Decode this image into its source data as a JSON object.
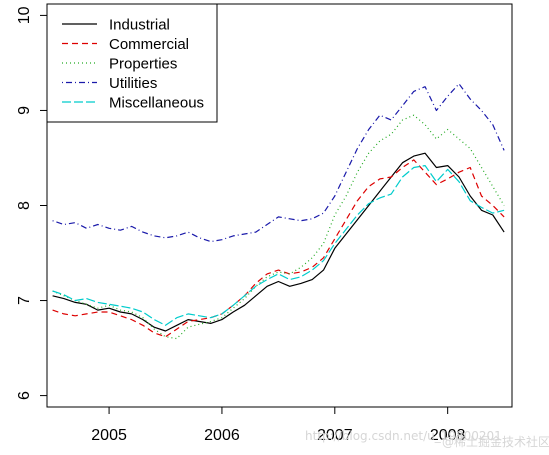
{
  "chart_data": {
    "type": "line",
    "title": "",
    "xlabel": "",
    "ylabel": "",
    "xlim": [
      2004.45,
      2008.57
    ],
    "ylim": [
      5.88,
      10.12
    ],
    "x_ticks": [
      2005,
      2006,
      2007,
      2008
    ],
    "x_tick_labels": [
      "2005",
      "2006",
      "2007",
      "2008"
    ],
    "y_ticks": [
      6,
      7,
      8,
      9,
      10
    ],
    "y_tick_labels": [
      "6",
      "7",
      "8",
      "9",
      "10"
    ],
    "grid": false,
    "legend_position": "top-left",
    "series": [
      {
        "name": "Industrial",
        "color": "#000000",
        "dash": "solid",
        "x": [
          2004.5,
          2004.6,
          2004.7,
          2004.8,
          2004.9,
          2005.0,
          2005.1,
          2005.2,
          2005.3,
          2005.4,
          2005.5,
          2005.6,
          2005.7,
          2005.8,
          2005.9,
          2006.0,
          2006.1,
          2006.2,
          2006.3,
          2006.4,
          2006.5,
          2006.6,
          2006.7,
          2006.8,
          2006.9,
          2007.0,
          2007.1,
          2007.2,
          2007.3,
          2007.4,
          2007.5,
          2007.6,
          2007.7,
          2007.8,
          2007.9,
          2008.0,
          2008.1,
          2008.2,
          2008.3,
          2008.4,
          2008.5
        ],
        "values": [
          7.05,
          7.02,
          6.98,
          6.96,
          6.9,
          6.92,
          6.88,
          6.86,
          6.8,
          6.72,
          6.68,
          6.74,
          6.8,
          6.78,
          6.76,
          6.8,
          6.88,
          6.95,
          7.05,
          7.15,
          7.2,
          7.15,
          7.18,
          7.22,
          7.32,
          7.55,
          7.7,
          7.85,
          8.0,
          8.15,
          8.3,
          8.45,
          8.52,
          8.55,
          8.4,
          8.42,
          8.3,
          8.1,
          7.95,
          7.9,
          7.72
        ]
      },
      {
        "name": "Commercial",
        "color": "#dd0000",
        "dash": "dashed",
        "x": [
          2004.5,
          2004.6,
          2004.7,
          2004.8,
          2004.9,
          2005.0,
          2005.1,
          2005.2,
          2005.3,
          2005.4,
          2005.5,
          2005.6,
          2005.7,
          2005.8,
          2005.9,
          2006.0,
          2006.1,
          2006.2,
          2006.3,
          2006.4,
          2006.5,
          2006.6,
          2006.7,
          2006.8,
          2006.9,
          2007.0,
          2007.1,
          2007.2,
          2007.3,
          2007.4,
          2007.5,
          2007.6,
          2007.7,
          2007.8,
          2007.9,
          2008.0,
          2008.1,
          2008.2,
          2008.3,
          2008.4,
          2008.5
        ],
        "values": [
          6.9,
          6.86,
          6.84,
          6.86,
          6.88,
          6.88,
          6.84,
          6.8,
          6.74,
          6.66,
          6.62,
          6.7,
          6.78,
          6.8,
          6.82,
          6.86,
          6.95,
          7.05,
          7.18,
          7.28,
          7.32,
          7.28,
          7.3,
          7.35,
          7.45,
          7.65,
          7.85,
          8.05,
          8.2,
          8.28,
          8.3,
          8.4,
          8.48,
          8.35,
          8.22,
          8.28,
          8.35,
          8.4,
          8.1,
          8.0,
          7.88
        ]
      },
      {
        "name": "Properties",
        "color": "#22aa22",
        "dash": "dotted",
        "x": [
          2004.5,
          2004.6,
          2004.7,
          2004.8,
          2004.9,
          2005.0,
          2005.1,
          2005.2,
          2005.3,
          2005.4,
          2005.5,
          2005.6,
          2005.7,
          2005.8,
          2005.9,
          2006.0,
          2006.1,
          2006.2,
          2006.3,
          2006.4,
          2006.5,
          2006.6,
          2006.7,
          2006.8,
          2006.9,
          2007.0,
          2007.1,
          2007.2,
          2007.3,
          2007.4,
          2007.5,
          2007.6,
          2007.7,
          2007.8,
          2007.9,
          2008.0,
          2008.1,
          2008.2,
          2008.3,
          2008.4,
          2008.5
        ],
        "values": [
          7.1,
          7.05,
          7.0,
          6.96,
          6.92,
          6.95,
          6.9,
          6.88,
          6.82,
          6.7,
          6.62,
          6.6,
          6.72,
          6.75,
          6.78,
          6.82,
          6.92,
          7.02,
          7.15,
          7.25,
          7.3,
          7.28,
          7.35,
          7.45,
          7.6,
          7.9,
          8.1,
          8.35,
          8.55,
          8.68,
          8.75,
          8.9,
          8.95,
          8.85,
          8.7,
          8.8,
          8.7,
          8.6,
          8.4,
          8.2,
          8.0
        ]
      },
      {
        "name": "Utilities",
        "color": "#1a1aaa",
        "dash": "dotdash",
        "x": [
          2004.5,
          2004.6,
          2004.7,
          2004.8,
          2004.9,
          2005.0,
          2005.1,
          2005.2,
          2005.3,
          2005.4,
          2005.5,
          2005.6,
          2005.7,
          2005.8,
          2005.9,
          2006.0,
          2006.1,
          2006.2,
          2006.3,
          2006.4,
          2006.5,
          2006.6,
          2006.7,
          2006.8,
          2006.9,
          2007.0,
          2007.1,
          2007.2,
          2007.3,
          2007.4,
          2007.5,
          2007.6,
          2007.7,
          2007.8,
          2007.9,
          2008.0,
          2008.1,
          2008.2,
          2008.3,
          2008.4,
          2008.5
        ],
        "values": [
          7.84,
          7.8,
          7.82,
          7.76,
          7.8,
          7.76,
          7.74,
          7.78,
          7.72,
          7.68,
          7.66,
          7.68,
          7.72,
          7.66,
          7.62,
          7.64,
          7.68,
          7.7,
          7.72,
          7.8,
          7.88,
          7.86,
          7.84,
          7.86,
          7.92,
          8.1,
          8.35,
          8.6,
          8.8,
          8.95,
          8.9,
          9.05,
          9.2,
          9.25,
          9.0,
          9.15,
          9.28,
          9.12,
          9.0,
          8.85,
          8.58
        ]
      },
      {
        "name": "Miscellaneous",
        "color": "#00cccc",
        "dash": "longdash",
        "x": [
          2004.5,
          2004.6,
          2004.7,
          2004.8,
          2004.9,
          2005.0,
          2005.1,
          2005.2,
          2005.3,
          2005.4,
          2005.5,
          2005.6,
          2005.7,
          2005.8,
          2005.9,
          2006.0,
          2006.1,
          2006.2,
          2006.3,
          2006.4,
          2006.5,
          2006.6,
          2006.7,
          2006.8,
          2006.9,
          2007.0,
          2007.1,
          2007.2,
          2007.3,
          2007.4,
          2007.5,
          2007.6,
          2007.7,
          2007.8,
          2007.9,
          2008.0,
          2008.1,
          2008.2,
          2008.3,
          2008.4,
          2008.5
        ],
        "values": [
          7.1,
          7.06,
          7.0,
          7.02,
          6.98,
          6.96,
          6.94,
          6.92,
          6.88,
          6.8,
          6.74,
          6.82,
          6.86,
          6.84,
          6.82,
          6.86,
          6.95,
          7.05,
          7.15,
          7.22,
          7.28,
          7.22,
          7.25,
          7.32,
          7.42,
          7.6,
          7.75,
          7.9,
          8.02,
          8.08,
          8.12,
          8.3,
          8.4,
          8.42,
          8.25,
          8.38,
          8.25,
          8.05,
          7.98,
          7.92,
          7.95
        ]
      }
    ]
  },
  "watermark": {
    "csdn": "http://blog.csdn.net/u_19800201",
    "juejin": "@稀土掘金技术社区"
  }
}
